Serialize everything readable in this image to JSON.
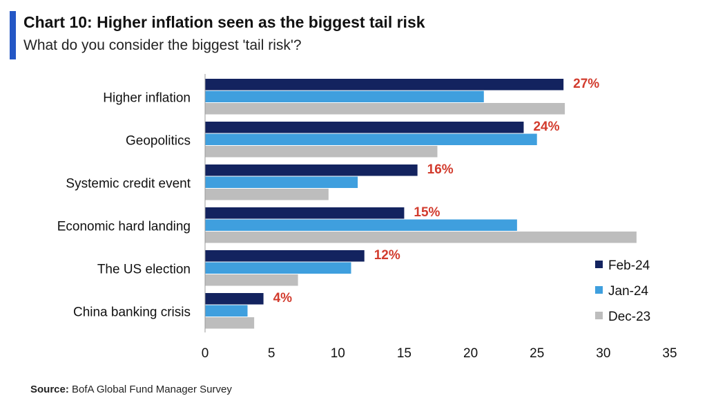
{
  "header": {
    "title": "Chart 10: Higher inflation seen as the biggest tail risk",
    "subtitle": "What do you consider the biggest 'tail risk'?",
    "accent_color": "#2457c5"
  },
  "footer": {
    "source_label": "Source:",
    "source_text": "BofA Global Fund Manager Survey"
  },
  "chart_data": {
    "type": "bar",
    "orientation": "horizontal",
    "title": "Chart 10: Higher inflation seen as the biggest tail risk",
    "subtitle": "What do you consider the biggest 'tail risk'?",
    "categories": [
      "Higher inflation",
      "Geopolitics",
      "Systemic credit event",
      "Economic hard landing",
      "The US election",
      "China banking crisis"
    ],
    "series": [
      {
        "name": "Feb-24",
        "color": "#13235f",
        "values": [
          27,
          24,
          16,
          15,
          12,
          4.4
        ]
      },
      {
        "name": "Jan-24",
        "color": "#3f9fde",
        "values": [
          21,
          25,
          11.5,
          23.5,
          11,
          3.2
        ]
      },
      {
        "name": "Dec-23",
        "color": "#bdbdbd",
        "values": [
          27.1,
          17.5,
          9.3,
          32.5,
          7,
          3.7
        ]
      }
    ],
    "data_labels": {
      "series": "Feb-24",
      "texts": [
        "27%",
        "24%",
        "16%",
        "15%",
        "12%",
        "4%"
      ],
      "color": "#d23b2d"
    },
    "xlim": [
      0,
      35
    ],
    "xticks": [
      "0",
      "5",
      "10",
      "15",
      "20",
      "25",
      "30",
      "35"
    ],
    "xtick_values": [
      0,
      5,
      10,
      15,
      20,
      25,
      30,
      35
    ],
    "grid": false,
    "legend_position": "bottom-right",
    "xlabel": "",
    "ylabel": ""
  }
}
